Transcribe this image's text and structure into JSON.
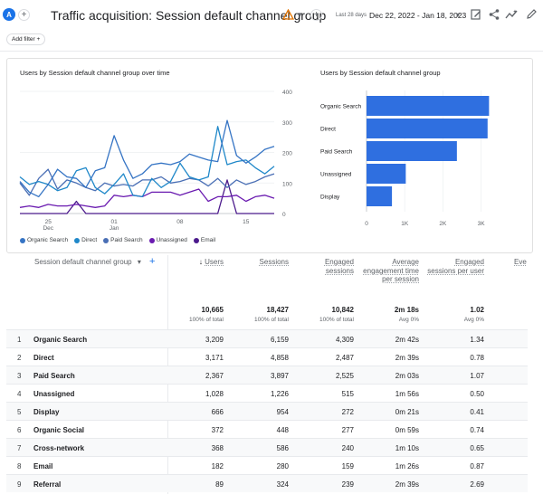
{
  "header": {
    "account_letter": "A",
    "title": "Traffic acquisition: Session default channel group",
    "last_days": "Last 28 days",
    "date_range": "Dec 22, 2022 - Jan 18, 2023",
    "add_filter": "Add filter"
  },
  "line_chart": {
    "title": "Users by Session default channel group over time",
    "y_ticks": [
      "400",
      "300",
      "200",
      "100",
      "0"
    ],
    "x_ticks": [
      {
        "day": "25",
        "month": "Dec"
      },
      {
        "day": "01",
        "month": "Jan"
      },
      {
        "day": "08",
        "month": ""
      },
      {
        "day": "15",
        "month": ""
      }
    ]
  },
  "bar_chart": {
    "title": "Users by Session default channel group",
    "x_ticks": [
      "0",
      "1K",
      "2K",
      "3K"
    ]
  },
  "legend": [
    "Organic Search",
    "Direct",
    "Paid Search",
    "Unassigned",
    "Email"
  ],
  "colors": {
    "organic": "#3574c4",
    "direct": "#1f88c9",
    "paid": "#4a6fb5",
    "unassigned": "#6a1bb0",
    "email": "#4b1a8c",
    "bar": "#2f6fe0",
    "accent": "#1a73e8"
  },
  "chart_data": [
    {
      "type": "line",
      "title": "Users by Session default channel group over time",
      "ylim": [
        0,
        400
      ],
      "x": [
        "Dec 22",
        "Dec 23",
        "Dec 24",
        "Dec 25",
        "Dec 26",
        "Dec 27",
        "Dec 28",
        "Dec 29",
        "Dec 30",
        "Dec 31",
        "Jan 01",
        "Jan 02",
        "Jan 03",
        "Jan 04",
        "Jan 05",
        "Jan 06",
        "Jan 07",
        "Jan 08",
        "Jan 09",
        "Jan 10",
        "Jan 11",
        "Jan 12",
        "Jan 13",
        "Jan 14",
        "Jan 15",
        "Jan 16",
        "Jan 17",
        "Jan 18"
      ],
      "series": [
        {
          "name": "Organic Search",
          "values": [
            105,
            70,
            55,
            95,
            145,
            120,
            115,
            85,
            140,
            150,
            255,
            175,
            115,
            130,
            160,
            165,
            160,
            170,
            195,
            185,
            175,
            170,
            305,
            190,
            165,
            185,
            210,
            220
          ]
        },
        {
          "name": "Direct",
          "values": [
            120,
            95,
            105,
            95,
            75,
            85,
            140,
            150,
            85,
            65,
            95,
            130,
            60,
            55,
            115,
            85,
            105,
            165,
            120,
            110,
            120,
            285,
            160,
            170,
            175,
            150,
            130,
            155
          ]
        },
        {
          "name": "Paid Search",
          "values": [
            100,
            60,
            115,
            145,
            80,
            110,
            100,
            85,
            75,
            100,
            90,
            95,
            90,
            110,
            110,
            120,
            100,
            105,
            115,
            110,
            90,
            115,
            85,
            110,
            95,
            105,
            120,
            130
          ]
        },
        {
          "name": "Unassigned",
          "values": [
            20,
            25,
            20,
            30,
            25,
            25,
            30,
            25,
            20,
            25,
            60,
            55,
            60,
            55,
            70,
            70,
            70,
            60,
            70,
            80,
            40,
            55,
            55,
            60,
            40,
            55,
            60,
            50
          ]
        },
        {
          "name": "Email",
          "values": [
            0,
            0,
            0,
            0,
            0,
            0,
            40,
            0,
            0,
            0,
            0,
            0,
            0,
            0,
            0,
            0,
            0,
            0,
            0,
            0,
            0,
            0,
            110,
            0,
            0,
            0,
            0,
            0
          ]
        }
      ]
    },
    {
      "type": "bar",
      "title": "Users by Session default channel group",
      "categories": [
        "Organic Search",
        "Direct",
        "Paid Search",
        "Unassigned",
        "Display"
      ],
      "values": [
        3209,
        3171,
        2367,
        1028,
        666
      ],
      "xlim": [
        0,
        3200
      ]
    }
  ],
  "table": {
    "dimension_header": "Session default channel group",
    "columns": [
      {
        "label": "Users",
        "sort": "↓"
      },
      {
        "label": "Sessions",
        "sort": ""
      },
      {
        "label": "Engaged sessions",
        "sort": ""
      },
      {
        "label": "Average engagement time per session",
        "sort": ""
      },
      {
        "label": "Engaged sessions per user",
        "sort": ""
      },
      {
        "label": "Eve",
        "sort": ""
      }
    ],
    "totals": [
      "10,665",
      "18,427",
      "10,842",
      "2m 18s",
      "1.02"
    ],
    "totals_sub": [
      "100% of total",
      "100% of total",
      "100% of total",
      "Avg 0%",
      "Avg 0%"
    ],
    "rows": [
      {
        "num": "1",
        "name": "Organic Search",
        "users": "3,209",
        "sessions": "6,159",
        "engaged": "4,309",
        "avgtime": "2m 42s",
        "per_user": "1.34"
      },
      {
        "num": "2",
        "name": "Direct",
        "users": "3,171",
        "sessions": "4,858",
        "engaged": "2,487",
        "avgtime": "2m 39s",
        "per_user": "0.78"
      },
      {
        "num": "3",
        "name": "Paid Search",
        "users": "2,367",
        "sessions": "3,897",
        "engaged": "2,525",
        "avgtime": "2m 03s",
        "per_user": "1.07"
      },
      {
        "num": "4",
        "name": "Unassigned",
        "users": "1,028",
        "sessions": "1,226",
        "engaged": "515",
        "avgtime": "1m 56s",
        "per_user": "0.50"
      },
      {
        "num": "5",
        "name": "Display",
        "users": "666",
        "sessions": "954",
        "engaged": "272",
        "avgtime": "0m 21s",
        "per_user": "0.41"
      },
      {
        "num": "6",
        "name": "Organic Social",
        "users": "372",
        "sessions": "448",
        "engaged": "277",
        "avgtime": "0m 59s",
        "per_user": "0.74"
      },
      {
        "num": "7",
        "name": "Cross-network",
        "users": "368",
        "sessions": "586",
        "engaged": "240",
        "avgtime": "1m 10s",
        "per_user": "0.65"
      },
      {
        "num": "8",
        "name": "Email",
        "users": "182",
        "sessions": "280",
        "engaged": "159",
        "avgtime": "1m 26s",
        "per_user": "0.87"
      },
      {
        "num": "9",
        "name": "Referral",
        "users": "89",
        "sessions": "324",
        "engaged": "239",
        "avgtime": "2m 39s",
        "per_user": "2.69"
      }
    ]
  }
}
